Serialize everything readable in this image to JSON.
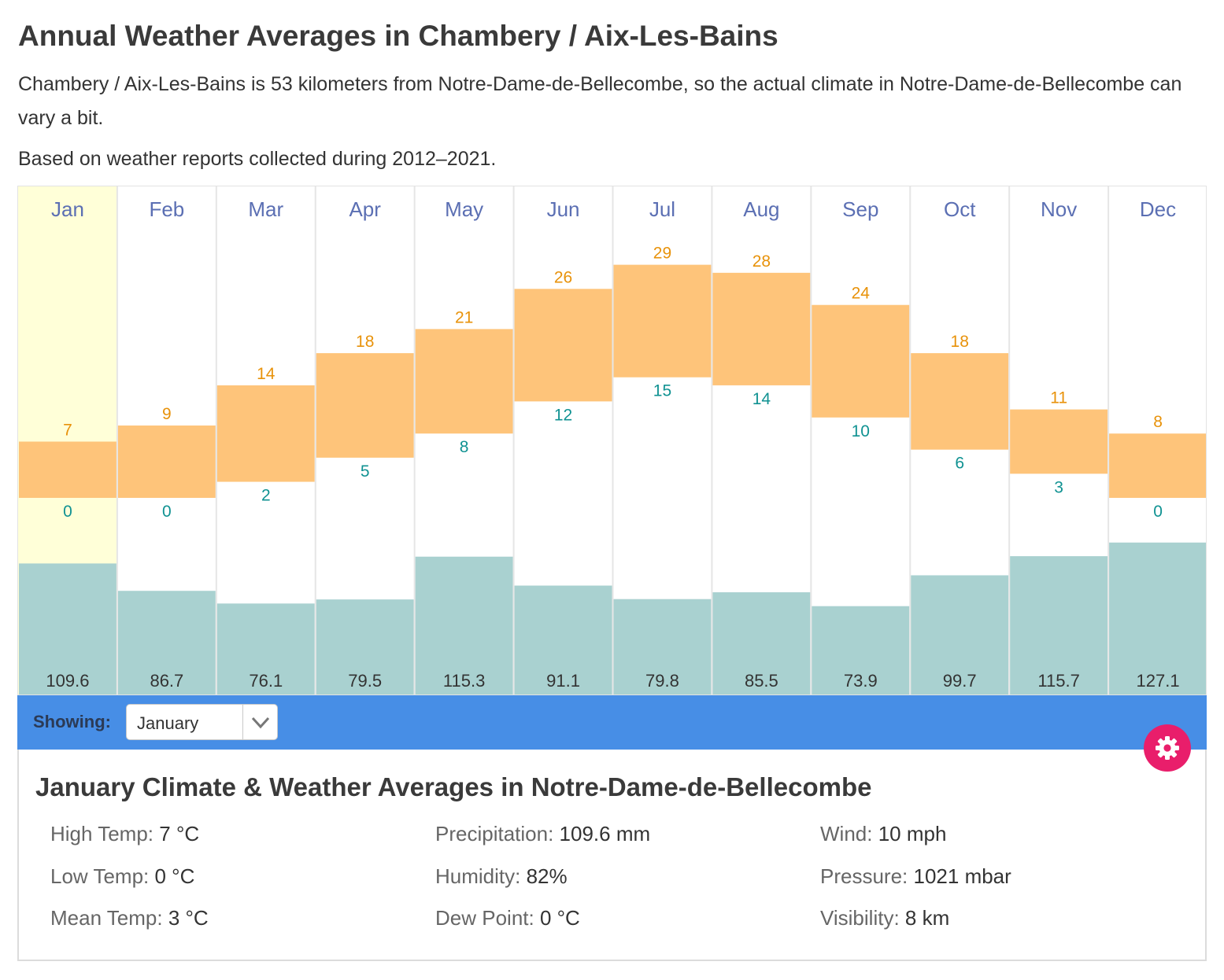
{
  "heading": "Annual Weather Averages in Chambery / Aix-Les-Bains",
  "intro": "Chambery / Aix-Les-Bains is 53 kilometers from Notre-Dame-de-Bellecombe, so the actual climate in Notre-Dame-de-Bellecombe can vary a bit.",
  "based_on": "Based on weather reports collected during 2012–2021.",
  "chart_data": {
    "type": "bar",
    "title": "",
    "categories": [
      "Jan",
      "Feb",
      "Mar",
      "Apr",
      "May",
      "Jun",
      "Jul",
      "Aug",
      "Sep",
      "Oct",
      "Nov",
      "Dec"
    ],
    "series": [
      {
        "name": "High Temp (°C)",
        "values": [
          7,
          9,
          14,
          18,
          21,
          26,
          29,
          28,
          24,
          18,
          11,
          8
        ]
      },
      {
        "name": "Low Temp (°C)",
        "values": [
          0,
          0,
          2,
          5,
          8,
          12,
          15,
          14,
          10,
          6,
          3,
          0
        ]
      },
      {
        "name": "Precipitation (mm)",
        "values": [
          109.6,
          86.7,
          76.1,
          79.5,
          115.3,
          91.1,
          79.8,
          85.5,
          73.9,
          99.7,
          115.7,
          127.1
        ]
      }
    ],
    "selected": "Jan",
    "colors": {
      "temp_band": "#fec47a",
      "precip": "#a9d1d0",
      "highlight": "#ffffd8",
      "month": "#5b6fb3",
      "high": "#e8920a",
      "low": "#109292"
    }
  },
  "selector": {
    "label": "Showing:",
    "value": "January"
  },
  "gear_icon": "gear-icon",
  "details": {
    "title": "January Climate & Weather Averages in Notre-Dame-de-Bellecombe",
    "stats": [
      {
        "label": "High Temp:",
        "value": "7 °C"
      },
      {
        "label": "Low Temp:",
        "value": "0 °C"
      },
      {
        "label": "Mean Temp:",
        "value": "3 °C"
      },
      {
        "label": "Precipitation:",
        "value": "109.6 mm"
      },
      {
        "label": "Humidity:",
        "value": "82%"
      },
      {
        "label": "Dew Point:",
        "value": "0 °C"
      },
      {
        "label": "Wind:",
        "value": "10 mph"
      },
      {
        "label": "Pressure:",
        "value": "1021 mbar"
      },
      {
        "label": "Visibility:",
        "value": "8 km"
      }
    ]
  }
}
